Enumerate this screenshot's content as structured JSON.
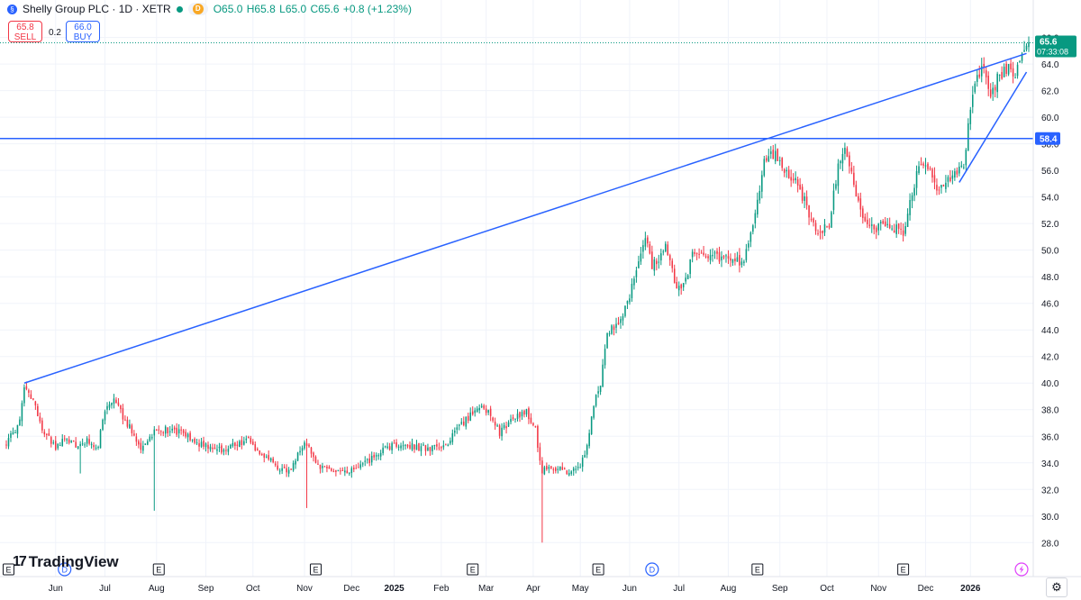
{
  "header": {
    "symbol_title": "Shelly Group PLC · 1D · XETR",
    "badge_letter": "D",
    "open": "O65.0",
    "high": "H65.8",
    "low": "L65.0",
    "close": "C65.6",
    "change": "+0.8 (+1.23%)"
  },
  "trade": {
    "sell_price": "65.8",
    "sell_label": "SELL",
    "spread": "0.2",
    "buy_price": "66.0",
    "buy_label": "BUY"
  },
  "brand": {
    "logo_text": "TradingView",
    "logo_mark": "17"
  },
  "settings_icon": "gear-icon",
  "colors": {
    "up": "#089981",
    "down": "#f23645",
    "drawing": "#2962ff",
    "grid": "#f0f3fa",
    "axis_text": "#131722"
  },
  "chart_data": {
    "type": "candlestick",
    "symbol": "Shelly Group PLC",
    "interval": "1D",
    "exchange": "XETR",
    "y_ticks": [
      28.0,
      30.0,
      32.0,
      34.0,
      36.0,
      38.0,
      40.0,
      42.0,
      44.0,
      46.0,
      48.0,
      50.0,
      52.0,
      54.0,
      56.0,
      58.0,
      60.0,
      62.0,
      64.0,
      66.0
    ],
    "ylim": [
      26.8,
      67.6
    ],
    "x_tick_labels": [
      {
        "label": "Jun",
        "bar": 22
      },
      {
        "label": "Jul",
        "bar": 44
      },
      {
        "label": "Aug",
        "bar": 67
      },
      {
        "label": "Sep",
        "bar": 89
      },
      {
        "label": "Oct",
        "bar": 110
      },
      {
        "label": "Nov",
        "bar": 133
      },
      {
        "label": "Dec",
        "bar": 154
      },
      {
        "label": "2025",
        "bar": 173,
        "bold": true
      },
      {
        "label": "Feb",
        "bar": 194
      },
      {
        "label": "Mar",
        "bar": 214
      },
      {
        "label": "Apr",
        "bar": 235
      },
      {
        "label": "May",
        "bar": 256
      },
      {
        "label": "Jun",
        "bar": 278
      },
      {
        "label": "Jul",
        "bar": 300
      },
      {
        "label": "Aug",
        "bar": 322
      },
      {
        "label": "Sep",
        "bar": 345
      },
      {
        "label": "Oct",
        "bar": 366
      },
      {
        "label": "Nov",
        "bar": 389
      },
      {
        "label": "Dec",
        "bar": 410
      },
      {
        "label": "2026",
        "bar": 430,
        "bold": true
      }
    ],
    "event_markers": [
      {
        "type": "E",
        "bar": 1
      },
      {
        "type": "D",
        "bar": 26
      },
      {
        "type": "E",
        "bar": 68
      },
      {
        "type": "E",
        "bar": 138
      },
      {
        "type": "E",
        "bar": 208
      },
      {
        "type": "E",
        "bar": 264
      },
      {
        "type": "D",
        "bar": 288
      },
      {
        "type": "E",
        "bar": 335
      },
      {
        "type": "E",
        "bar": 400
      }
    ],
    "price_labels": {
      "last_price": 65.6,
      "countdown": "07:33:08",
      "horizontal_level": 58.4
    },
    "drawings": [
      {
        "type": "horizontal_line",
        "price": 58.4
      },
      {
        "type": "trend_line",
        "from": {
          "bar": 8,
          "price": 40.0
        },
        "to": {
          "bar": 455,
          "price": 64.8
        }
      },
      {
        "type": "trend_line",
        "from": {
          "bar": 425,
          "price": 55.1
        },
        "to": {
          "bar": 455,
          "price": 63.4
        }
      }
    ],
    "bar_count": 457,
    "keypoints": [
      [
        0,
        35.5
      ],
      [
        6,
        37.0
      ],
      [
        8,
        39.5
      ],
      [
        12,
        38.8
      ],
      [
        16,
        36.5
      ],
      [
        22,
        35.2
      ],
      [
        27,
        35.8
      ],
      [
        32,
        35.3
      ],
      [
        36,
        35.6
      ],
      [
        41,
        35.3
      ],
      [
        44,
        38.0
      ],
      [
        48,
        38.6
      ],
      [
        54,
        37.0
      ],
      [
        60,
        35.0
      ],
      [
        66,
        36.4
      ],
      [
        72,
        36.5
      ],
      [
        78,
        36.2
      ],
      [
        84,
        35.6
      ],
      [
        90,
        35.2
      ],
      [
        96,
        35.0
      ],
      [
        102,
        35.4
      ],
      [
        108,
        35.7
      ],
      [
        113,
        34.8
      ],
      [
        120,
        33.8
      ],
      [
        126,
        33.3
      ],
      [
        130,
        34.6
      ],
      [
        134,
        35.5
      ],
      [
        138,
        33.8
      ],
      [
        145,
        33.5
      ],
      [
        152,
        33.2
      ],
      [
        158,
        33.7
      ],
      [
        165,
        34.6
      ],
      [
        172,
        35.3
      ],
      [
        180,
        35.3
      ],
      [
        188,
        35.1
      ],
      [
        195,
        35.2
      ],
      [
        202,
        36.6
      ],
      [
        208,
        37.8
      ],
      [
        211,
        38.4
      ],
      [
        216,
        37.6
      ],
      [
        220,
        36.2
      ],
      [
        226,
        37.4
      ],
      [
        232,
        37.8
      ],
      [
        236,
        36.4
      ],
      [
        239,
        33.4
      ],
      [
        242,
        33.8
      ],
      [
        248,
        33.4
      ],
      [
        252,
        33.3
      ],
      [
        256,
        33.8
      ],
      [
        259,
        35.2
      ],
      [
        262,
        38.5
      ],
      [
        265,
        40.0
      ],
      [
        268,
        44.0
      ],
      [
        271,
        44.2
      ],
      [
        274,
        44.6
      ],
      [
        277,
        46.0
      ],
      [
        281,
        48.5
      ],
      [
        285,
        51.2
      ],
      [
        288,
        48.8
      ],
      [
        291,
        49.2
      ],
      [
        294,
        50.6
      ],
      [
        298,
        47.5
      ],
      [
        302,
        47.3
      ],
      [
        306,
        49.6
      ],
      [
        312,
        49.8
      ],
      [
        318,
        49.3
      ],
      [
        323,
        49.6
      ],
      [
        328,
        48.8
      ],
      [
        332,
        51.0
      ],
      [
        335,
        53.5
      ],
      [
        338,
        56.5
      ],
      [
        341,
        57.4
      ],
      [
        344,
        57.0
      ],
      [
        347,
        56.0
      ],
      [
        351,
        55.4
      ],
      [
        356,
        53.8
      ],
      [
        360,
        51.8
      ],
      [
        364,
        51.4
      ],
      [
        367,
        52.0
      ],
      [
        371,
        56.2
      ],
      [
        374,
        57.4
      ],
      [
        377,
        55.8
      ],
      [
        381,
        52.8
      ],
      [
        386,
        51.6
      ],
      [
        392,
        52.0
      ],
      [
        397,
        51.6
      ],
      [
        400,
        51.1
      ],
      [
        403,
        53.6
      ],
      [
        406,
        55.6
      ],
      [
        409,
        56.6
      ],
      [
        412,
        55.8
      ],
      [
        416,
        54.4
      ],
      [
        420,
        55.6
      ],
      [
        424,
        55.7
      ],
      [
        427,
        56.3
      ],
      [
        430,
        60.5
      ],
      [
        433,
        63.2
      ],
      [
        436,
        63.8
      ],
      [
        439,
        61.5
      ],
      [
        442,
        62.8
      ],
      [
        446,
        63.7
      ],
      [
        450,
        63.4
      ],
      [
        453,
        64.6
      ],
      [
        456,
        65.6
      ]
    ]
  }
}
